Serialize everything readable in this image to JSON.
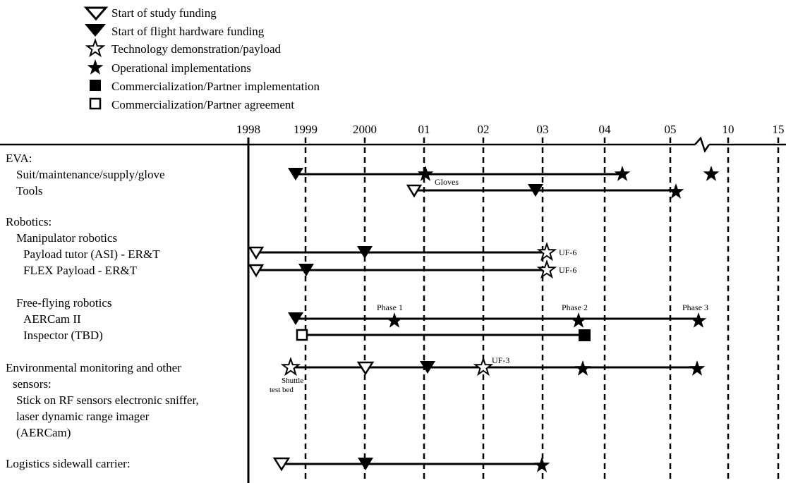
{
  "legend": [
    {
      "symbol": "open-triangle",
      "label": "Start of study funding"
    },
    {
      "symbol": "filled-triangle",
      "label": "Start of flight hardware funding"
    },
    {
      "symbol": "open-star",
      "label": "Technology demonstration/payload"
    },
    {
      "symbol": "filled-star",
      "label": "Operational implementations"
    },
    {
      "symbol": "filled-square",
      "label": "Commercialization/Partner implementation"
    },
    {
      "symbol": "open-square",
      "label": "Commercialization/Partner agreement"
    }
  ],
  "years": [
    "1998",
    "1999",
    "2000",
    "01",
    "02",
    "03",
    "04",
    "05",
    "10",
    "15"
  ],
  "rows": [
    {
      "label": "EVA:"
    },
    {
      "label": "Suit/maintenance/supply/glove"
    },
    {
      "label": "Tools"
    },
    {
      "label": "Robotics:"
    },
    {
      "label": "Manipulator robotics"
    },
    {
      "label": "Payload tutor (ASI) - ER&T"
    },
    {
      "label": "FLEX Payload - ER&T"
    },
    {
      "label": "Free-flying robotics"
    },
    {
      "label": "AERCam II"
    },
    {
      "label": "Inspector (TBD)"
    },
    {
      "label": "Environmental monitoring and other"
    },
    {
      "label": "sensors:"
    },
    {
      "label": "Stick on RF sensors electronic sniffer,"
    },
    {
      "label": "laser dynamic range imager"
    },
    {
      "label": "(AERCam)"
    },
    {
      "label": "Logistics sidewall carrier:"
    }
  ],
  "annotations": {
    "gloves": "Gloves",
    "uf6_a": "UF-6",
    "uf6_b": "UF-6",
    "phase1": "Phase 1",
    "phase2": "Phase 2",
    "phase3": "Phase 3",
    "uf3": "UF-3",
    "shuttle": "Shuttle",
    "testbed": "test bed"
  },
  "timeline": [
    {
      "row": "suit",
      "start": 1998.8,
      "end": 2004.3,
      "markers": [
        {
          "t": 1998.8,
          "symbol": "filled-triangle"
        },
        {
          "t": 2001.0,
          "symbol": "filled-star"
        },
        {
          "t": 2004.3,
          "symbol": "filled-star"
        },
        {
          "t": "2010+",
          "symbol": "filled-star"
        }
      ]
    },
    {
      "row": "tools",
      "start": 2000.8,
      "end": 2005.0,
      "markers": [
        {
          "t": 2000.8,
          "symbol": "open-triangle"
        },
        {
          "t": 2002.9,
          "symbol": "filled-triangle"
        },
        {
          "t": 2005.0,
          "symbol": "filled-star"
        }
      ]
    },
    {
      "row": "payload-tutor",
      "start": 1998.0,
      "end": 2003.0,
      "markers": [
        {
          "t": 1998.0,
          "symbol": "open-triangle"
        },
        {
          "t": 2000.0,
          "symbol": "filled-triangle"
        },
        {
          "t": 2003.0,
          "symbol": "open-star"
        }
      ]
    },
    {
      "row": "flex-payload",
      "start": 1998.0,
      "end": 2003.0,
      "markers": [
        {
          "t": 1998.0,
          "symbol": "open-triangle"
        },
        {
          "t": 1999.0,
          "symbol": "filled-triangle"
        },
        {
          "t": 2003.0,
          "symbol": "open-star"
        }
      ]
    },
    {
      "row": "aercam",
      "start": 1998.8,
      "end": "2010+",
      "markers": [
        {
          "t": 1998.8,
          "symbol": "filled-triangle"
        },
        {
          "t": 2000.5,
          "symbol": "filled-star"
        },
        {
          "t": 2003.6,
          "symbol": "filled-star"
        },
        {
          "t": "2010+",
          "symbol": "filled-star"
        }
      ]
    },
    {
      "row": "inspector",
      "start": 1998.9,
      "end": 2003.7,
      "markers": [
        {
          "t": 1998.9,
          "symbol": "open-square"
        },
        {
          "t": 2003.7,
          "symbol": "filled-square"
        }
      ]
    },
    {
      "row": "environmental",
      "start": 1998.7,
      "end": "2010+",
      "markers": [
        {
          "t": 1998.7,
          "symbol": "open-star"
        },
        {
          "t": 2000.0,
          "symbol": "open-triangle"
        },
        {
          "t": 2001.0,
          "symbol": "filled-triangle"
        },
        {
          "t": 2002.0,
          "symbol": "open-star"
        },
        {
          "t": 2003.6,
          "symbol": "filled-star"
        },
        {
          "t": "2010+",
          "symbol": "filled-star"
        }
      ]
    },
    {
      "row": "logistics",
      "start": 1998.5,
      "end": 2003.0,
      "markers": [
        {
          "t": 1998.5,
          "symbol": "open-triangle"
        },
        {
          "t": 2000.0,
          "symbol": "filled-triangle"
        },
        {
          "t": 2003.0,
          "symbol": "filled-star"
        }
      ]
    }
  ]
}
